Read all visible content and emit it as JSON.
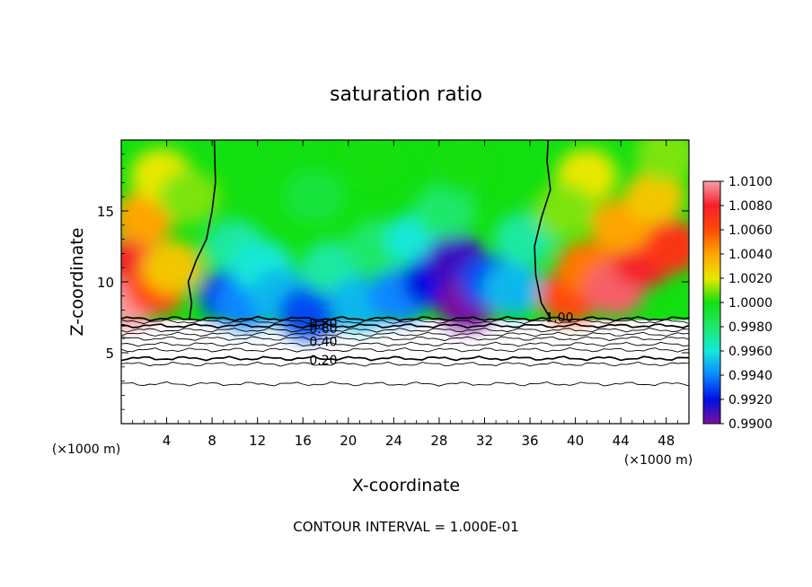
{
  "chart_data": {
    "type": "heatmap",
    "title": "saturation ratio",
    "xlabel": "X-coordinate",
    "ylabel": "Z-coordinate",
    "x_unit": "(×1000 m)",
    "x_unit_right": "(×1000 m)",
    "footer": "CONTOUR INTERVAL = 1.000E-01",
    "xlim": [
      0,
      50
    ],
    "ylim": [
      0,
      20
    ],
    "x_ticks": [
      4,
      8,
      12,
      16,
      20,
      24,
      28,
      32,
      36,
      40,
      44,
      48
    ],
    "x_tick_labels": [
      "4",
      "8",
      "12",
      "16",
      "20",
      "24",
      "28",
      "32",
      "36",
      "40",
      "44",
      "48"
    ],
    "y_ticks": [
      5,
      10,
      15
    ],
    "y_tick_labels": [
      "5",
      "10",
      "15"
    ],
    "colorbar": {
      "range": [
        0.99,
        1.01
      ],
      "tick_values": [
        1.01,
        1.008,
        1.006,
        1.004,
        1.002,
        1.0,
        0.998,
        0.996,
        0.994,
        0.992,
        0.99
      ],
      "tick_labels": [
        "1.0100",
        "1.0080",
        "1.0060",
        "1.0040",
        "1.0020",
        "1.0000",
        "0.9980",
        "0.9960",
        "0.9940",
        "0.9920",
        "0.9900"
      ]
    },
    "contour_labels": [
      {
        "text": "1.00",
        "x": 38.6,
        "z": 7.5
      },
      {
        "text": "0.80",
        "x": 17.8,
        "z": 7.1
      },
      {
        "text": "0.60",
        "x": 17.8,
        "z": 6.7
      },
      {
        "text": "0.40",
        "x": 17.8,
        "z": 5.8
      },
      {
        "text": "0.20",
        "x": 17.8,
        "z": 4.5
      }
    ],
    "lower_contour_levels": [
      {
        "z": 7.4,
        "bold": true
      },
      {
        "z": 7.2,
        "bold": false
      },
      {
        "z": 6.9,
        "bold": true
      },
      {
        "z": 6.6,
        "bold": false
      },
      {
        "z": 6.3,
        "bold": false
      },
      {
        "z": 6.0,
        "bold": false
      },
      {
        "z": 5.6,
        "bold": false
      },
      {
        "z": 5.2,
        "bold": false
      },
      {
        "z": 4.6,
        "bold": true
      },
      {
        "z": 4.2,
        "bold": false
      },
      {
        "z": 2.8,
        "bold": false
      }
    ],
    "left_contour_1_00": [
      [
        6.0,
        7.3
      ],
      [
        6.2,
        8.5
      ],
      [
        5.9,
        10.0
      ],
      [
        6.6,
        11.5
      ],
      [
        7.5,
        13.0
      ],
      [
        8.0,
        15.0
      ],
      [
        8.3,
        17.0
      ],
      [
        8.2,
        20.0
      ]
    ],
    "right_contour_1_00": [
      [
        37.8,
        7.4
      ],
      [
        37.0,
        8.5
      ],
      [
        36.5,
        10.5
      ],
      [
        36.4,
        12.5
      ],
      [
        37.0,
        14.5
      ],
      [
        37.8,
        16.5
      ],
      [
        37.5,
        18.5
      ],
      [
        37.6,
        20.0
      ]
    ],
    "field_points": [
      {
        "x": 0.5,
        "z": 8.5,
        "v": 1.01
      },
      {
        "x": 1.5,
        "z": 11.5,
        "v": 1.008
      },
      {
        "x": 3.0,
        "z": 9.5,
        "v": 1.006
      },
      {
        "x": 2.0,
        "z": 14.5,
        "v": 1.004
      },
      {
        "x": 4.5,
        "z": 11.0,
        "v": 1.003
      },
      {
        "x": 3.5,
        "z": 17.5,
        "v": 1.002
      },
      {
        "x": 6.0,
        "z": 16.0,
        "v": 1.001
      },
      {
        "x": 9.5,
        "z": 9.0,
        "v": 0.993
      },
      {
        "x": 11.0,
        "z": 8.5,
        "v": 0.994
      },
      {
        "x": 10.0,
        "z": 12.5,
        "v": 0.997
      },
      {
        "x": 12.5,
        "z": 11.0,
        "v": 0.996
      },
      {
        "x": 14.0,
        "z": 9.0,
        "v": 0.995
      },
      {
        "x": 16.5,
        "z": 7.8,
        "v": 0.993
      },
      {
        "x": 18.5,
        "z": 11.0,
        "v": 0.997
      },
      {
        "x": 21.0,
        "z": 8.5,
        "v": 0.995
      },
      {
        "x": 22.5,
        "z": 12.5,
        "v": 0.998
      },
      {
        "x": 24.5,
        "z": 9.0,
        "v": 0.994
      },
      {
        "x": 26.0,
        "z": 13.0,
        "v": 0.996
      },
      {
        "x": 27.5,
        "z": 10.0,
        "v": 0.992
      },
      {
        "x": 29.5,
        "z": 11.5,
        "v": 0.991
      },
      {
        "x": 30.5,
        "z": 8.5,
        "v": 0.99
      },
      {
        "x": 32.5,
        "z": 10.0,
        "v": 0.993
      },
      {
        "x": 34.5,
        "z": 9.5,
        "v": 0.995
      },
      {
        "x": 35.5,
        "z": 13.0,
        "v": 0.997
      },
      {
        "x": 28.5,
        "z": 15.0,
        "v": 0.998
      },
      {
        "x": 17.0,
        "z": 16.0,
        "v": 0.999
      },
      {
        "x": 22.0,
        "z": 18.5,
        "v": 1.0
      },
      {
        "x": 30.0,
        "z": 18.0,
        "v": 1.0
      },
      {
        "x": 39.5,
        "z": 9.0,
        "v": 1.006
      },
      {
        "x": 41.0,
        "z": 11.0,
        "v": 1.005
      },
      {
        "x": 43.5,
        "z": 9.5,
        "v": 1.009
      },
      {
        "x": 46.0,
        "z": 11.5,
        "v": 1.008
      },
      {
        "x": 48.5,
        "z": 12.5,
        "v": 1.007
      },
      {
        "x": 44.0,
        "z": 14.0,
        "v": 1.004
      },
      {
        "x": 47.0,
        "z": 16.0,
        "v": 1.003
      },
      {
        "x": 41.0,
        "z": 17.5,
        "v": 1.002
      },
      {
        "x": 39.0,
        "z": 15.0,
        "v": 1.001
      },
      {
        "x": 48.0,
        "z": 19.0,
        "v": 1.001
      }
    ]
  }
}
